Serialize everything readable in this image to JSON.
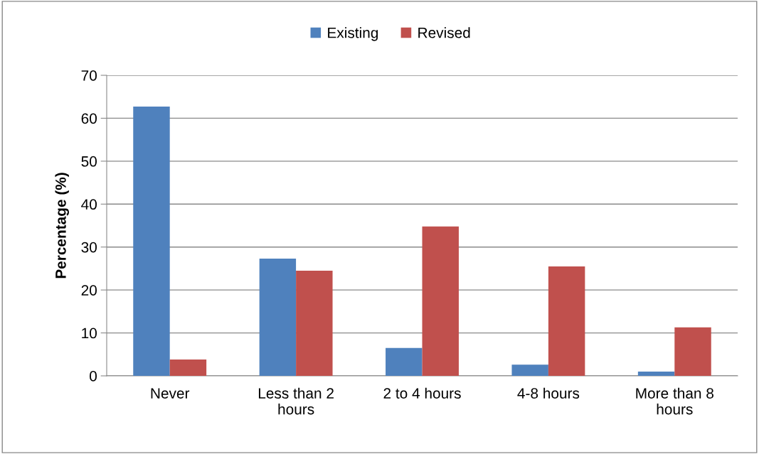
{
  "chart_data": {
    "type": "bar",
    "ylabel": "Percentage (%)",
    "categories": [
      "Never",
      "Less than 2 hours",
      "2 to 4 hours",
      "4-8 hours",
      "More than 8 hours"
    ],
    "series": [
      {
        "name": "Existing",
        "color": "#4f81bd",
        "values": [
          62.7,
          27.3,
          6.5,
          2.6,
          1.0
        ]
      },
      {
        "name": "Revised",
        "color": "#c0504d",
        "values": [
          3.8,
          24.5,
          34.8,
          25.5,
          11.3
        ]
      }
    ],
    "ylim": [
      0,
      70
    ],
    "yticks": [
      0,
      10,
      20,
      30,
      40,
      50,
      60,
      70
    ],
    "grid": "y",
    "legend": "top"
  }
}
